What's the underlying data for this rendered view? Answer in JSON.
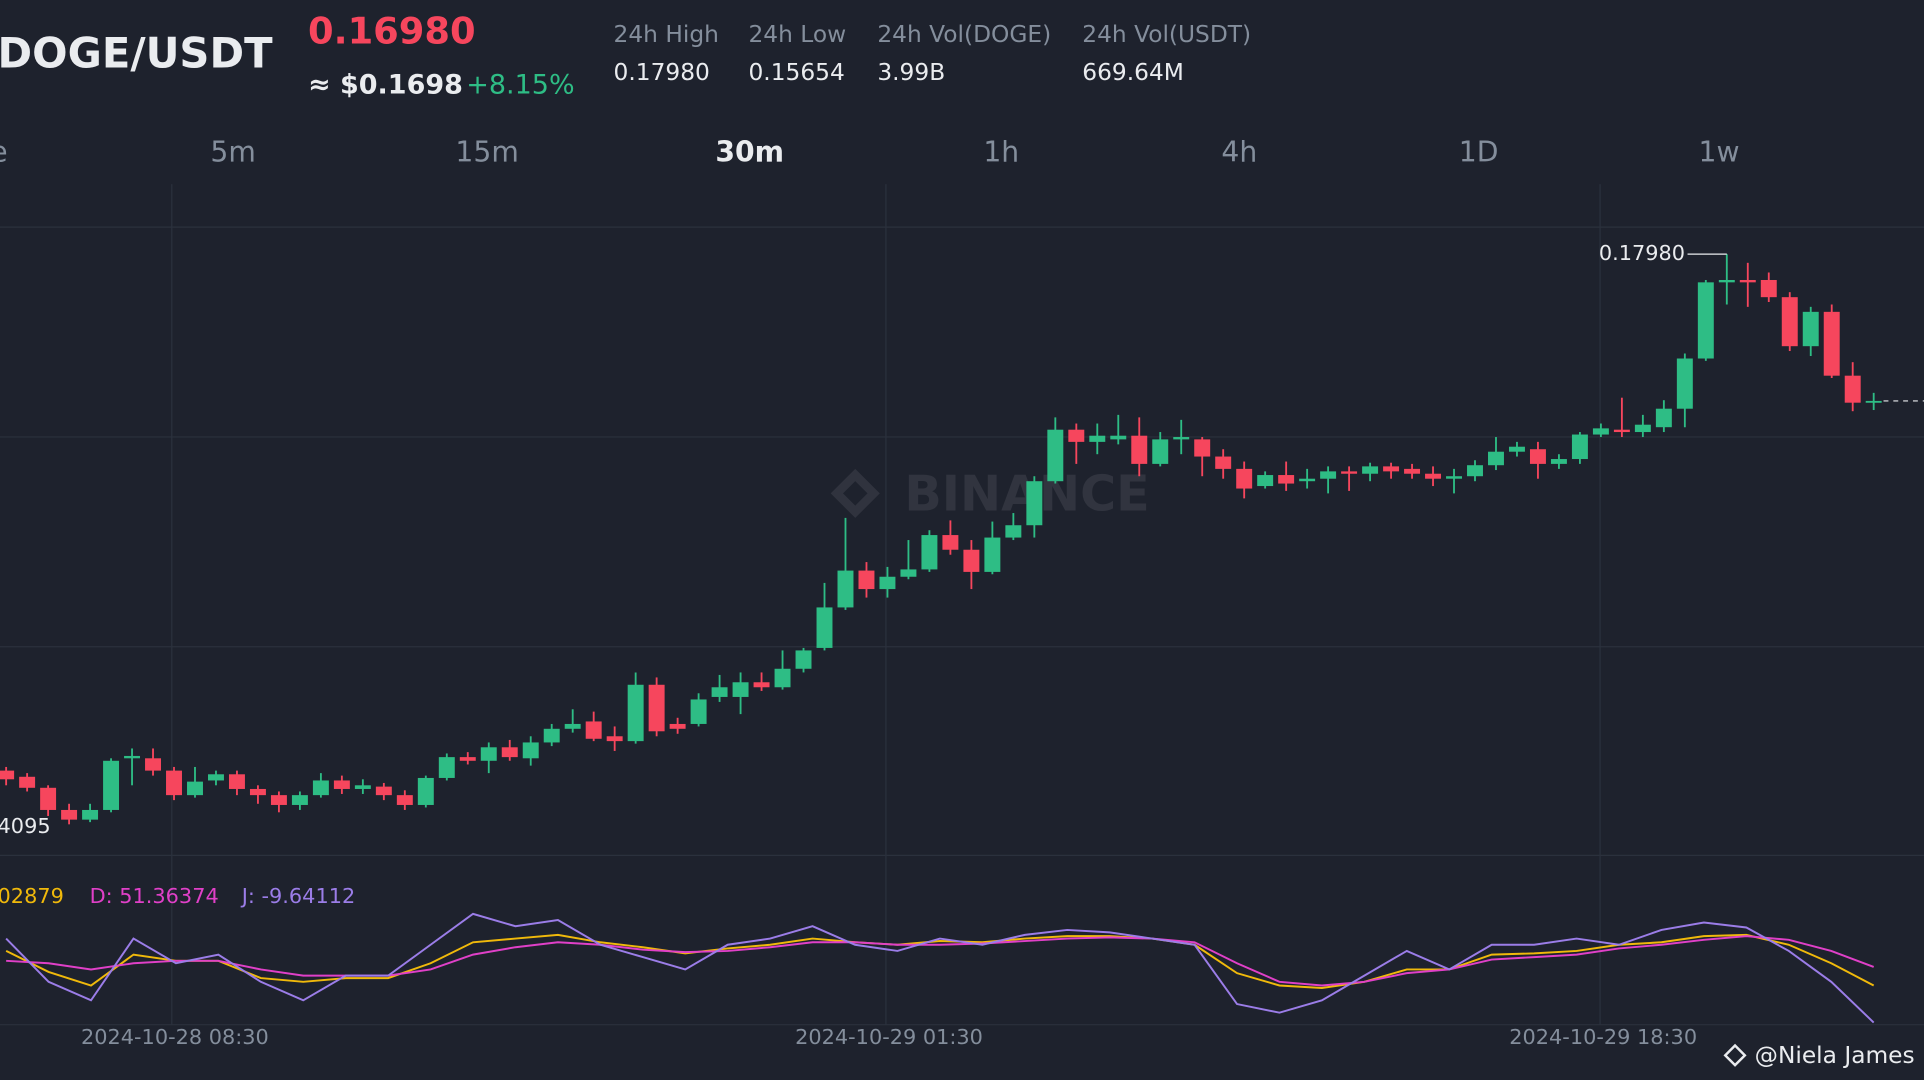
{
  "header": {
    "pair": "DOGE/USDT",
    "price": "0.16980",
    "usd_price": "≈ $0.1698",
    "change": "+8.15%",
    "stats": [
      {
        "label": "24h High",
        "value": "0.17980"
      },
      {
        "label": "24h Low",
        "value": "0.15654"
      },
      {
        "label": "24h Vol(DOGE)",
        "value": "3.99B"
      },
      {
        "label": "24h Vol(USDT)",
        "value": "669.64M"
      }
    ]
  },
  "tabs": [
    "e",
    "5m",
    "15m",
    "30m",
    "1h",
    "4h",
    "1D",
    "1w"
  ],
  "active_tab": 3,
  "watermark": "BINANCE",
  "credit": "@Niela James",
  "chart_data": {
    "type": "candlestick",
    "ylim": [
      0.13775,
      0.18457
    ],
    "up_color": "#2ebd85",
    "down_color": "#f6465d",
    "high_label": "0.17980",
    "low_label": "4095",
    "x_labels": [
      "2024-10-28 08:30",
      "2024-10-29 01:30",
      "2024-10-29 18:30"
    ],
    "ohlc": [
      [
        0.14461,
        0.14486,
        0.14361,
        0.14402
      ],
      [
        0.14419,
        0.14444,
        0.14319,
        0.14344
      ],
      [
        0.14344,
        0.14361,
        0.14152,
        0.14193
      ],
      [
        0.14193,
        0.14235,
        0.14095,
        0.14127
      ],
      [
        0.14127,
        0.14235,
        0.1411,
        0.14193
      ],
      [
        0.14193,
        0.14545,
        0.14177,
        0.14528
      ],
      [
        0.14545,
        0.14612,
        0.14361,
        0.14561
      ],
      [
        0.14545,
        0.14612,
        0.14427,
        0.14461
      ],
      [
        0.14461,
        0.14486,
        0.1426,
        0.14294
      ],
      [
        0.14294,
        0.14486,
        0.14277,
        0.14386
      ],
      [
        0.14394,
        0.14461,
        0.14361,
        0.14436
      ],
      [
        0.14436,
        0.14461,
        0.14294,
        0.14336
      ],
      [
        0.14336,
        0.14361,
        0.14235,
        0.14294
      ],
      [
        0.14294,
        0.14319,
        0.14177,
        0.14227
      ],
      [
        0.14227,
        0.14319,
        0.14193,
        0.14294
      ],
      [
        0.14294,
        0.14444,
        0.14277,
        0.14394
      ],
      [
        0.14394,
        0.14427,
        0.14302,
        0.14336
      ],
      [
        0.14336,
        0.14402,
        0.14302,
        0.14361
      ],
      [
        0.14352,
        0.14377,
        0.1426,
        0.14294
      ],
      [
        0.14294,
        0.14327,
        0.14193,
        0.14227
      ],
      [
        0.14227,
        0.14427,
        0.1421,
        0.14411
      ],
      [
        0.14411,
        0.14578,
        0.14394,
        0.14553
      ],
      [
        0.14553,
        0.14587,
        0.14503,
        0.14528
      ],
      [
        0.14528,
        0.14653,
        0.14444,
        0.1462
      ],
      [
        0.1462,
        0.1467,
        0.14528,
        0.14553
      ],
      [
        0.14545,
        0.14695,
        0.14495,
        0.14653
      ],
      [
        0.14653,
        0.14779,
        0.14628,
        0.14746
      ],
      [
        0.14746,
        0.14879,
        0.1472,
        0.14779
      ],
      [
        0.14796,
        0.14863,
        0.14662,
        0.14678
      ],
      [
        0.14695,
        0.14762,
        0.14595,
        0.14662
      ],
      [
        0.14662,
        0.1513,
        0.14645,
        0.15046
      ],
      [
        0.15046,
        0.15096,
        0.14695,
        0.14729
      ],
      [
        0.14779,
        0.14821,
        0.14712,
        0.14746
      ],
      [
        0.14779,
        0.14988,
        0.14762,
        0.14946
      ],
      [
        0.14963,
        0.15113,
        0.14929,
        0.15029
      ],
      [
        0.14963,
        0.1513,
        0.14846,
        0.15063
      ],
      [
        0.15063,
        0.1513,
        0.15004,
        0.15029
      ],
      [
        0.15029,
        0.1528,
        0.15013,
        0.15155
      ],
      [
        0.15155,
        0.15297,
        0.1513,
        0.1528
      ],
      [
        0.15297,
        0.1574,
        0.1528,
        0.15573
      ],
      [
        0.15573,
        0.16183,
        0.15556,
        0.15824
      ],
      [
        0.15824,
        0.15882,
        0.1564,
        0.15698
      ],
      [
        0.15698,
        0.15849,
        0.1564,
        0.15782
      ],
      [
        0.15782,
        0.16032,
        0.15765,
        0.15832
      ],
      [
        0.15832,
        0.16099,
        0.15815,
        0.16066
      ],
      [
        0.16066,
        0.16166,
        0.15932,
        0.15966
      ],
      [
        0.15966,
        0.16032,
        0.15698,
        0.15815
      ],
      [
        0.15815,
        0.16158,
        0.15799,
        0.16049
      ],
      [
        0.16049,
        0.16216,
        0.16032,
        0.16133
      ],
      [
        0.16133,
        0.16467,
        0.16049,
        0.16433
      ],
      [
        0.16433,
        0.16868,
        0.16417,
        0.16784
      ],
      [
        0.16784,
        0.16826,
        0.16551,
        0.16701
      ],
      [
        0.16701,
        0.16826,
        0.16617,
        0.16743
      ],
      [
        0.16718,
        0.16885,
        0.16684,
        0.16743
      ],
      [
        0.16743,
        0.16868,
        0.16467,
        0.16551
      ],
      [
        0.16551,
        0.16768,
        0.16534,
        0.16718
      ],
      [
        0.16718,
        0.16851,
        0.16617,
        0.16734
      ],
      [
        0.16718,
        0.16734,
        0.16467,
        0.16601
      ],
      [
        0.16601,
        0.16651,
        0.1645,
        0.16517
      ],
      [
        0.16517,
        0.16567,
        0.16316,
        0.16383
      ],
      [
        0.164,
        0.165,
        0.16383,
        0.16475
      ],
      [
        0.16475,
        0.16567,
        0.16367,
        0.16417
      ],
      [
        0.16433,
        0.16517,
        0.16383,
        0.1645
      ],
      [
        0.1645,
        0.16534,
        0.1635,
        0.165
      ],
      [
        0.165,
        0.16534,
        0.16367,
        0.16484
      ],
      [
        0.16484,
        0.16559,
        0.16433,
        0.16534
      ],
      [
        0.16534,
        0.16559,
        0.1645,
        0.165
      ],
      [
        0.16517,
        0.16551,
        0.1645,
        0.16484
      ],
      [
        0.16484,
        0.16534,
        0.164,
        0.1645
      ],
      [
        0.1645,
        0.16517,
        0.1635,
        0.16467
      ],
      [
        0.16467,
        0.16576,
        0.16433,
        0.16542
      ],
      [
        0.16542,
        0.16734,
        0.16509,
        0.16634
      ],
      [
        0.16634,
        0.16701,
        0.16601,
        0.16668
      ],
      [
        0.16651,
        0.16701,
        0.1645,
        0.16551
      ],
      [
        0.16551,
        0.16617,
        0.16517,
        0.16584
      ],
      [
        0.16584,
        0.16768,
        0.16551,
        0.16751
      ],
      [
        0.16751,
        0.16826,
        0.16734,
        0.16793
      ],
      [
        0.16784,
        0.17002,
        0.16734,
        0.16768
      ],
      [
        0.16768,
        0.16885,
        0.16734,
        0.16818
      ],
      [
        0.16801,
        0.16985,
        0.16768,
        0.16927
      ],
      [
        0.16927,
        0.17303,
        0.16801,
        0.17269
      ],
      [
        0.17269,
        0.17804,
        0.17253,
        0.17788
      ],
      [
        0.17788,
        0.1798,
        0.17637,
        0.17804
      ],
      [
        0.17804,
        0.17921,
        0.17621,
        0.17788
      ],
      [
        0.17804,
        0.17855,
        0.17654,
        0.17687
      ],
      [
        0.17687,
        0.17721,
        0.1732,
        0.17353
      ],
      [
        0.17353,
        0.17621,
        0.17286,
        0.17587
      ],
      [
        0.17587,
        0.17637,
        0.17136,
        0.17152
      ],
      [
        0.17152,
        0.17244,
        0.1691,
        0.16968
      ],
      [
        0.16968,
        0.17035,
        0.16918,
        0.1698
      ]
    ],
    "indicator": {
      "type": "line",
      "ylim": [
        -12,
        116
      ],
      "legend": [
        "02879",
        "D: 51.36374",
        "J: -9.64112"
      ],
      "series": [
        {
          "color": "#f0b90b",
          "values": [
            68.99,
            45.94,
            31.02,
            64.92,
            58.14,
            58.14,
            39.16,
            35.09,
            39.16,
            39.16,
            55.43,
            78.48,
            82.55,
            86.62,
            78.48,
            73.06,
            66.28,
            71.7,
            75.77,
            82.55,
            78.48,
            75.77,
            79.84,
            78.48,
            82.55,
            85.26,
            85.26,
            82.55,
            75.77,
            44.58,
            31.02,
            28.31,
            35.09,
            48.65,
            48.65,
            64.92,
            66.28,
            68.99,
            75.77,
            78.48,
            85.26,
            86.62,
            75.77,
            55.43,
            31.02
          ]
        },
        {
          "color": "#e040c8",
          "values": [
            58.14,
            55.43,
            48.65,
            55.43,
            58.14,
            58.14,
            48.65,
            41.87,
            41.87,
            41.87,
            48.65,
            64.92,
            73.06,
            78.48,
            75.77,
            70.34,
            67.63,
            68.99,
            73.06,
            78.48,
            78.48,
            75.77,
            75.77,
            77.12,
            79.84,
            82.55,
            83.9,
            82.55,
            78.48,
            55.43,
            35.09,
            31.02,
            35.09,
            44.58,
            48.65,
            59.5,
            62.21,
            64.92,
            71.7,
            75.77,
            81.19,
            85.26,
            81.19,
            68.99,
            51.36374
          ]
        },
        {
          "color": "#9b7de8",
          "values": [
            82.55,
            35.09,
            14.75,
            82.55,
            55.43,
            64.92,
            35.09,
            14.75,
            41.87,
            41.87,
            75.77,
            109.67,
            96.11,
            102.89,
            75.77,
            62.21,
            48.65,
            75.77,
            82.55,
            96.11,
            75.77,
            68.99,
            82.55,
            75.77,
            86.62,
            92.04,
            89.33,
            82.55,
            75.77,
            10.68,
            1.19,
            14.75,
            41.87,
            68.99,
            48.65,
            75.77,
            75.77,
            82.55,
            75.77,
            92.04,
            100.18,
            94.75,
            68.99,
            35.09,
            -9.64112
          ]
        }
      ]
    }
  }
}
